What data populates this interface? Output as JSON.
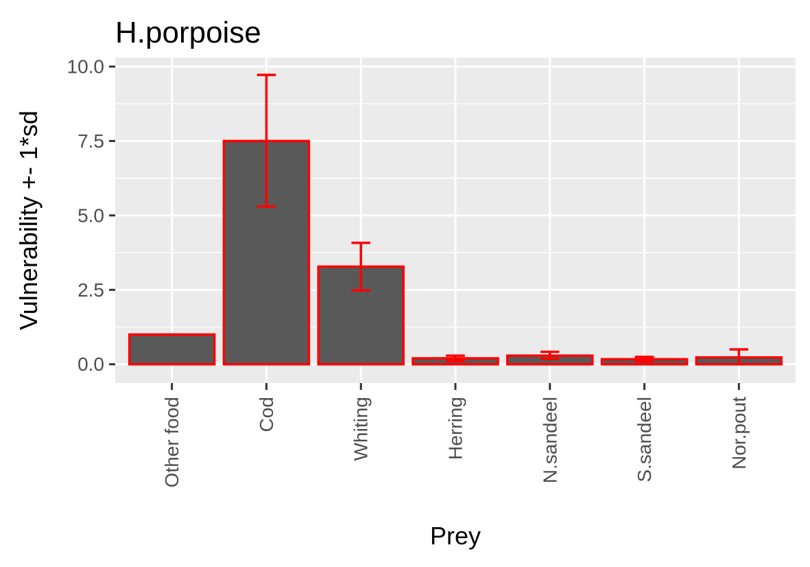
{
  "chart_data": {
    "type": "bar",
    "title": "H.porpoise",
    "xlabel": "Prey",
    "ylabel": "Vulnerability +- 1*sd",
    "categories": [
      "Other food",
      "Cod",
      "Whiting",
      "Herring",
      "N.sandeel",
      "S.sandeel",
      "Nor.pout"
    ],
    "values": [
      1.0,
      7.5,
      3.28,
      0.2,
      0.29,
      0.17,
      0.23
    ],
    "error_low": [
      1.0,
      5.3,
      2.48,
      0.11,
      0.18,
      0.1,
      0.0
    ],
    "error_high": [
      1.0,
      9.72,
      4.08,
      0.29,
      0.42,
      0.25,
      0.5
    ],
    "ylim": [
      -0.63,
      10.3
    ],
    "yticks": [
      0.0,
      2.5,
      5.0,
      7.5,
      10.0
    ],
    "ytick_labels": [
      "0.0",
      "2.5",
      "5.0",
      "7.5",
      "10.0"
    ],
    "grid": true,
    "legend": "none",
    "colors": {
      "bar_fill": "#595959",
      "bar_outline": "#ff0000",
      "error_bar": "#ff0000",
      "panel_bg": "#ebebeb",
      "grid": "#ffffff",
      "tick": "#333333"
    }
  }
}
